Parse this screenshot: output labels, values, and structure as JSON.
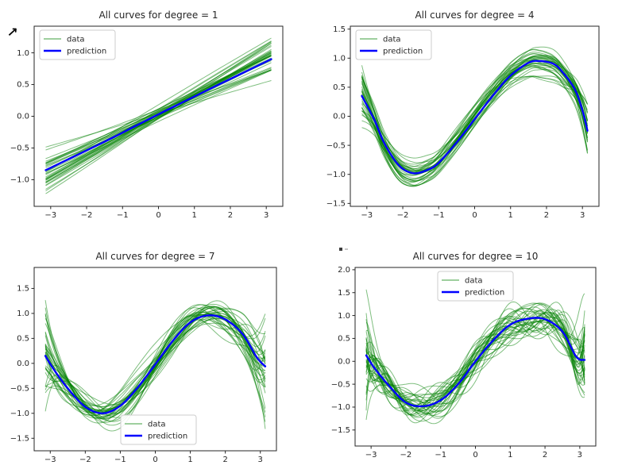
{
  "window": {
    "background": "#ffffff"
  },
  "cursor": {
    "glyph": "↗"
  },
  "chart_data": {
    "type": "line",
    "x_domain": [
      -3.14,
      3.14
    ],
    "xlabel": "",
    "ylabel": "",
    "grid": false,
    "colors": {
      "data_line": "#008000",
      "data_alpha": 0.5,
      "prediction_line": "#0000ff",
      "axis": "#262626",
      "tick_text": "#262626",
      "legend_border": "#cccccc",
      "legend_bg": "#ffffff",
      "legend_data_swatch": "#7fbf7f"
    },
    "subplots": [
      {
        "id": "degree-1",
        "degree": 1,
        "title": "All curves for degree = 1",
        "xlim": [
          -3.46,
          3.46
        ],
        "ylim": [
          -1.42,
          1.42
        ],
        "xticks": [
          -3,
          -2,
          -1,
          0,
          1,
          2,
          3
        ],
        "xtick_labels": [
          "−3",
          "−2",
          "−1",
          "0",
          "1",
          "2",
          "3"
        ],
        "yticks": [
          1.0,
          0.5,
          0.0,
          -0.5,
          -1.0
        ],
        "ytick_labels": [
          "1.0",
          "0.5",
          "0.0",
          "−0.5",
          "−1.0"
        ],
        "legend": {
          "loc": "upper-left",
          "items": [
            {
              "label": "data",
              "swatch": "#7fbf7f",
              "weight": 1.5
            },
            {
              "label": "prediction",
              "swatch": "#0000ff",
              "weight": 2.5
            }
          ]
        },
        "prediction_points": [
          [
            -3.14,
            -0.85
          ],
          [
            -1.57,
            -0.42
          ],
          [
            0,
            0.03
          ],
          [
            1.57,
            0.47
          ],
          [
            3.14,
            0.9
          ]
        ],
        "data_ensemble": {
          "n_curves": 35,
          "sigmas": [
            0.055,
            0.16
          ],
          "edge_sigma": 0,
          "seed": 7
        }
      },
      {
        "id": "degree-4",
        "degree": 4,
        "title": "All curves for degree = 4",
        "xlim": [
          -3.46,
          3.46
        ],
        "ylim": [
          -1.55,
          1.55
        ],
        "xticks": [
          -3,
          -2,
          -1,
          0,
          1,
          2,
          3
        ],
        "xtick_labels": [
          "−3",
          "−2",
          "−1",
          "0",
          "1",
          "2",
          "3"
        ],
        "yticks": [
          1.5,
          1.0,
          0.5,
          0.0,
          -0.5,
          -1.0,
          -1.5
        ],
        "ytick_labels": [
          "1.5",
          "1.0",
          "0.5",
          "0.0",
          "−0.5",
          "−1.0",
          "−1.5"
        ],
        "legend": {
          "loc": "upper-left",
          "items": [
            {
              "label": "data",
              "swatch": "#7fbf7f",
              "weight": 1.5
            },
            {
              "label": "prediction",
              "swatch": "#0000ff",
              "weight": 2.5
            }
          ]
        },
        "prediction_points": [
          [
            -3.14,
            0.35
          ],
          [
            -2.8,
            -0.05
          ],
          [
            -2.5,
            -0.48
          ],
          [
            -2.1,
            -0.85
          ],
          [
            -1.7,
            -0.98
          ],
          [
            -1.3,
            -0.92
          ],
          [
            -1.0,
            -0.8
          ],
          [
            -0.5,
            -0.45
          ],
          [
            0,
            -0.05
          ],
          [
            0.5,
            0.35
          ],
          [
            1.0,
            0.7
          ],
          [
            1.5,
            0.92
          ],
          [
            1.8,
            0.95
          ],
          [
            2.2,
            0.9
          ],
          [
            2.5,
            0.72
          ],
          [
            2.8,
            0.45
          ],
          [
            3.0,
            0.1
          ],
          [
            3.14,
            -0.25
          ]
        ],
        "data_ensemble": {
          "n_curves": 35,
          "sigmas": [
            0.05,
            0.06,
            0.06,
            0.08,
            0.09
          ],
          "edge_sigma": 0.16,
          "seed": 13
        }
      },
      {
        "id": "degree-7",
        "degree": 7,
        "title": "All curves for degree = 7",
        "xlim": [
          -3.46,
          3.46
        ],
        "ylim": [
          -1.75,
          1.92
        ],
        "xticks": [
          -3,
          -2,
          -1,
          0,
          1,
          2,
          3
        ],
        "xtick_labels": [
          "−3",
          "−2",
          "−1",
          "0",
          "1",
          "2",
          "3"
        ],
        "yticks": [
          1.5,
          1.0,
          0.5,
          0.0,
          -0.5,
          -1.0,
          -1.5
        ],
        "ytick_labels": [
          "1.5",
          "1.0",
          "0.5",
          "0.0",
          "−0.5",
          "−1.0",
          "−1.5"
        ],
        "legend": {
          "loc": "lower-center",
          "items": [
            {
              "label": "data",
              "swatch": "#7fbf7f",
              "weight": 1.5
            },
            {
              "label": "prediction",
              "swatch": "#0000ff",
              "weight": 2.5
            }
          ]
        },
        "prediction_points": [
          [
            -3.14,
            0.15
          ],
          [
            -2.9,
            -0.12
          ],
          [
            -2.5,
            -0.5
          ],
          [
            -2.0,
            -0.87
          ],
          [
            -1.5,
            -1.0
          ],
          [
            -1.0,
            -0.85
          ],
          [
            -0.5,
            -0.48
          ],
          [
            0,
            -0.02
          ],
          [
            0.5,
            0.45
          ],
          [
            1.0,
            0.82
          ],
          [
            1.5,
            0.96
          ],
          [
            2.0,
            0.88
          ],
          [
            2.5,
            0.58
          ],
          [
            2.9,
            0.12
          ],
          [
            3.14,
            -0.06
          ]
        ],
        "data_ensemble": {
          "n_curves": 35,
          "sigmas": [
            0.05,
            0.06,
            0.06,
            0.07,
            0.08,
            0.08,
            0.09,
            0.1
          ],
          "edge_sigma": 0.5,
          "seed": 21
        }
      },
      {
        "id": "degree-10",
        "degree": 10,
        "title": "All curves for degree = 10",
        "xlim": [
          -3.46,
          3.46
        ],
        "ylim": [
          -1.85,
          2.05
        ],
        "xticks": [
          -3,
          -2,
          -1,
          0,
          1,
          2,
          3
        ],
        "xtick_labels": [
          "−3",
          "−2",
          "−1",
          "0",
          "1",
          "2",
          "3"
        ],
        "yticks": [
          2.0,
          1.5,
          1.0,
          0.5,
          0.0,
          -0.5,
          -1.0,
          -1.5
        ],
        "ytick_labels": [
          "2.0",
          "1.5",
          "1.0",
          "0.5",
          "0.0",
          "−0.5",
          "−1.0",
          "−1.5"
        ],
        "legend": {
          "loc": "upper-center",
          "items": [
            {
              "label": "data",
              "swatch": "#7fbf7f",
              "weight": 1.5
            },
            {
              "label": "prediction",
              "swatch": "#0000ff",
              "weight": 2.5
            }
          ]
        },
        "prediction_points": [
          [
            -3.14,
            0.13
          ],
          [
            -2.9,
            -0.15
          ],
          [
            -2.5,
            -0.52
          ],
          [
            -2.0,
            -0.9
          ],
          [
            -1.5,
            -0.98
          ],
          [
            -1.0,
            -0.85
          ],
          [
            -0.5,
            -0.5
          ],
          [
            0,
            0.0
          ],
          [
            0.5,
            0.45
          ],
          [
            1.0,
            0.8
          ],
          [
            1.5,
            0.93
          ],
          [
            2.0,
            0.92
          ],
          [
            2.5,
            0.65
          ],
          [
            2.9,
            0.1
          ],
          [
            3.14,
            0.03
          ]
        ],
        "data_ensemble": {
          "n_curves": 35,
          "sigmas": [
            0.05,
            0.06,
            0.06,
            0.07,
            0.07,
            0.08,
            0.08,
            0.09,
            0.1,
            0.1,
            0.11
          ],
          "edge_sigma": 0.65,
          "seed": 29
        }
      }
    ]
  }
}
